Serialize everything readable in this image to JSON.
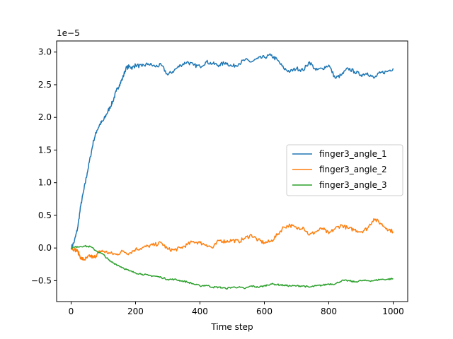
{
  "chart_data": {
    "type": "line",
    "title": "",
    "xlabel": "Time step",
    "ylabel": "",
    "y_offset_label": "1e−5",
    "y_scale_factor": 1e-05,
    "xlim": [
      -45,
      1045
    ],
    "ylim": [
      -0.82,
      3.17
    ],
    "x_ticks": [
      0,
      200,
      400,
      600,
      800,
      1000
    ],
    "x_tick_labels": [
      "0",
      "200",
      "400",
      "600",
      "800",
      "1000"
    ],
    "y_ticks": [
      -0.5,
      0.0,
      0.5,
      1.0,
      1.5,
      2.0,
      2.5,
      3.0
    ],
    "y_tick_labels": [
      "−0.5",
      "0.0",
      "0.5",
      "1.0",
      "1.5",
      "2.0",
      "2.5",
      "3.0"
    ],
    "grid": false,
    "legend_position": "center-right",
    "series": [
      {
        "name": "finger3_angle_1",
        "color": "#1f77b4",
        "x": [
          0,
          10,
          20,
          30,
          40,
          50,
          60,
          70,
          80,
          90,
          100,
          110,
          120,
          130,
          140,
          150,
          160,
          170,
          180,
          190,
          200,
          220,
          240,
          260,
          280,
          300,
          320,
          340,
          360,
          380,
          400,
          420,
          440,
          460,
          480,
          500,
          520,
          540,
          560,
          580,
          600,
          620,
          640,
          660,
          680,
          700,
          720,
          740,
          760,
          780,
          800,
          820,
          840,
          860,
          880,
          900,
          920,
          940,
          960,
          980,
          1000
        ],
        "y": [
          0.0,
          0.1,
          0.3,
          0.65,
          0.9,
          1.15,
          1.4,
          1.65,
          1.8,
          1.9,
          1.95,
          2.05,
          2.15,
          2.25,
          2.4,
          2.5,
          2.6,
          2.75,
          2.78,
          2.76,
          2.8,
          2.78,
          2.82,
          2.78,
          2.8,
          2.65,
          2.72,
          2.8,
          2.85,
          2.8,
          2.78,
          2.85,
          2.82,
          2.8,
          2.84,
          2.78,
          2.82,
          2.88,
          2.85,
          2.9,
          2.92,
          2.95,
          2.88,
          2.75,
          2.7,
          2.75,
          2.72,
          2.85,
          2.72,
          2.75,
          2.8,
          2.6,
          2.65,
          2.75,
          2.7,
          2.65,
          2.68,
          2.6,
          2.68,
          2.7,
          2.75
        ]
      },
      {
        "name": "finger3_angle_2",
        "color": "#ff7f0e",
        "x": [
          0,
          10,
          20,
          30,
          40,
          50,
          60,
          70,
          80,
          90,
          100,
          120,
          140,
          160,
          180,
          200,
          220,
          240,
          260,
          280,
          300,
          320,
          340,
          360,
          380,
          400,
          420,
          440,
          460,
          480,
          500,
          520,
          540,
          560,
          580,
          600,
          620,
          640,
          660,
          680,
          700,
          720,
          740,
          760,
          780,
          800,
          820,
          840,
          860,
          880,
          900,
          920,
          940,
          960,
          980,
          1000
        ],
        "y": [
          0.0,
          -0.02,
          -0.05,
          -0.15,
          -0.18,
          -0.15,
          -0.12,
          -0.15,
          -0.1,
          -0.05,
          -0.05,
          -0.08,
          -0.1,
          -0.05,
          -0.08,
          -0.02,
          0.0,
          0.03,
          0.05,
          0.08,
          -0.02,
          -0.03,
          0.0,
          0.05,
          0.1,
          0.08,
          0.05,
          0.0,
          0.12,
          0.1,
          0.12,
          0.1,
          0.15,
          0.2,
          0.12,
          0.08,
          0.1,
          0.2,
          0.32,
          0.35,
          0.3,
          0.32,
          0.2,
          0.25,
          0.3,
          0.22,
          0.3,
          0.35,
          0.3,
          0.28,
          0.25,
          0.3,
          0.45,
          0.38,
          0.3,
          0.25
        ]
      },
      {
        "name": "finger3_angle_3",
        "color": "#2ca02c",
        "x": [
          0,
          20,
          40,
          60,
          80,
          100,
          120,
          140,
          160,
          180,
          200,
          220,
          240,
          260,
          280,
          300,
          320,
          340,
          360,
          380,
          400,
          420,
          440,
          460,
          480,
          500,
          520,
          540,
          560,
          580,
          600,
          620,
          640,
          660,
          680,
          700,
          720,
          740,
          760,
          780,
          800,
          820,
          840,
          860,
          880,
          900,
          920,
          940,
          960,
          980,
          1000
        ],
        "y": [
          0.0,
          0.02,
          0.03,
          0.02,
          -0.05,
          -0.1,
          -0.2,
          -0.25,
          -0.3,
          -0.35,
          -0.38,
          -0.4,
          -0.42,
          -0.43,
          -0.45,
          -0.48,
          -0.48,
          -0.5,
          -0.52,
          -0.55,
          -0.58,
          -0.57,
          -0.6,
          -0.6,
          -0.62,
          -0.6,
          -0.6,
          -0.62,
          -0.58,
          -0.6,
          -0.58,
          -0.55,
          -0.56,
          -0.57,
          -0.58,
          -0.58,
          -0.58,
          -0.6,
          -0.58,
          -0.57,
          -0.55,
          -0.55,
          -0.5,
          -0.5,
          -0.52,
          -0.5,
          -0.5,
          -0.5,
          -0.48,
          -0.48,
          -0.47
        ]
      }
    ]
  }
}
